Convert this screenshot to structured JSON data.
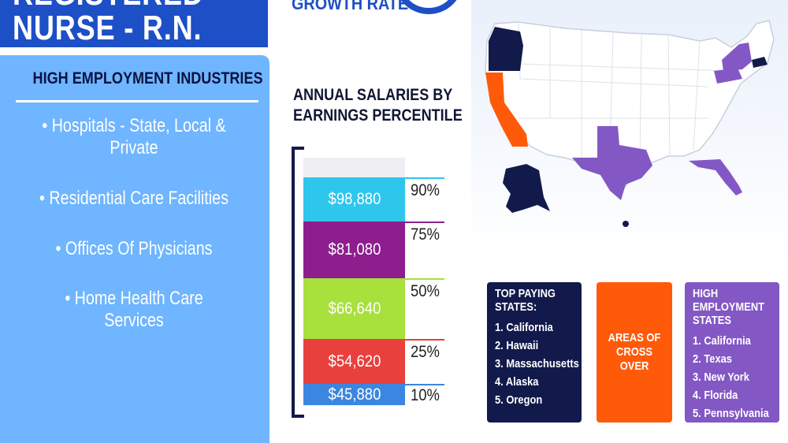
{
  "title": {
    "line1": "REGISTERED",
    "line2": "NURSE - R.N."
  },
  "growth_rate_label": "GROWTH RATE",
  "industries": {
    "heading": "HIGH EMPLOYMENT INDUSTRIES",
    "items": [
      "• Hospitals - State, Local & Private",
      "• Residential Care Facilities",
      "• Offices Of Physicians",
      "• Home Health Care Services"
    ]
  },
  "salaries": {
    "title_line1": "ANNUAL SALARIES BY",
    "title_line2": "EARNINGS PERCENTILE",
    "segments": [
      {
        "value": "$98,880",
        "percentile": "90%",
        "color": "#2fc6ec"
      },
      {
        "value": "$81,080",
        "percentile": "75%",
        "color": "#8e1e8e"
      },
      {
        "value": "$66,640",
        "percentile": "50%",
        "color": "#a8e03c"
      },
      {
        "value": "$54,620",
        "percentile": "25%",
        "color": "#e8403c"
      },
      {
        "value": "$45,880",
        "percentile": "10%",
        "color": "#3a86e0"
      }
    ]
  },
  "map_legend": {
    "top_paying": {
      "heading": "TOP PAYING STATES:",
      "items": [
        "1. California",
        "2. Hawaii",
        "3. Massachusetts",
        "4. Alaska",
        "5. Oregon"
      ],
      "color": "#121a4c"
    },
    "cross_over": {
      "label": "AREAS OF CROSS OVER",
      "color": "#ff5a0a"
    },
    "high_employment": {
      "heading": "HIGH EMPLOYMENT STATES",
      "items": [
        "1. California",
        "2. Texas",
        "3. New York",
        "4. Florida",
        "5. Pennsylvania"
      ],
      "color": "#8358c4"
    }
  },
  "colors": {
    "brand_blue": "#1d4fc6",
    "panel_blue": "#6fb5ff",
    "navy": "#121a4c",
    "orange": "#ff5a0a",
    "purple": "#8358c4"
  }
}
